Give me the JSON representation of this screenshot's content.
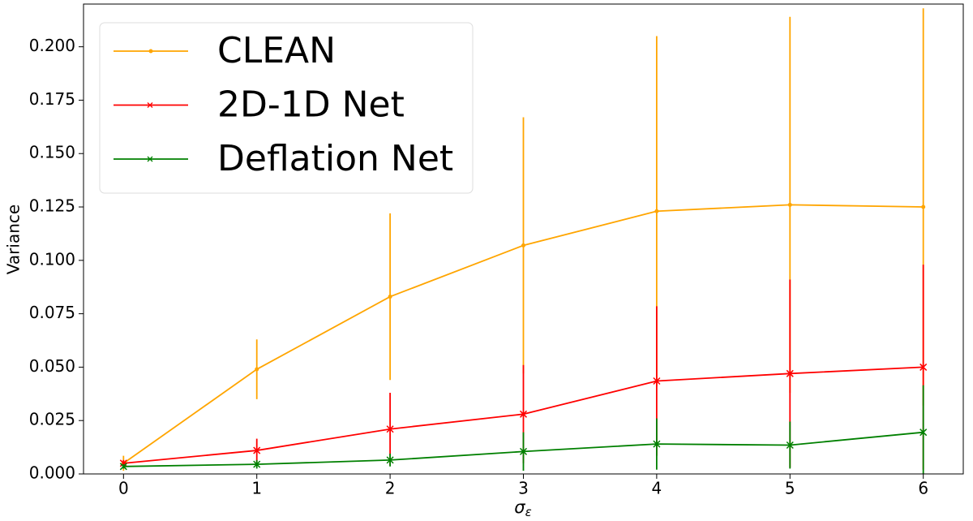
{
  "chart_data": {
    "type": "line",
    "x_label": {
      "symbol": "σ",
      "subscript": "ε"
    },
    "y_label": "Variance",
    "x": [
      0,
      1,
      2,
      3,
      4,
      5,
      6
    ],
    "xlim": [
      -0.3,
      6.3
    ],
    "xticks": [
      0,
      1,
      2,
      3,
      4,
      5,
      6
    ],
    "ylim": [
      0,
      0.22
    ],
    "yticks": [
      {
        "value": 0,
        "label": "0.000"
      },
      {
        "value": 0.025,
        "label": "0.025"
      },
      {
        "value": 0.05,
        "label": "0.050"
      },
      {
        "value": 0.075,
        "label": "0.075"
      },
      {
        "value": 0.1,
        "label": "0.100"
      },
      {
        "value": 0.125,
        "label": "0.125"
      },
      {
        "value": 0.15,
        "label": "0.150"
      },
      {
        "value": 0.175,
        "label": "0.175"
      },
      {
        "value": 0.2,
        "label": "0.200"
      }
    ],
    "grid": false,
    "legend": "upper left",
    "series": [
      {
        "name": "CLEAN",
        "color": "#ffa500",
        "marker": "dot",
        "values": [
          0.005,
          0.049,
          0.083,
          0.107,
          0.123,
          0.126,
          0.125
        ],
        "errors": [
          0.0035,
          0.014,
          0.039,
          0.06,
          0.082,
          0.088,
          0.093
        ]
      },
      {
        "name": "2D-1D Net",
        "color": "#ff0000",
        "marker": "x",
        "values": [
          0.005,
          0.011,
          0.021,
          0.028,
          0.0435,
          0.047,
          0.05
        ],
        "errors": [
          0.0015,
          0.0055,
          0.017,
          0.023,
          0.035,
          0.044,
          0.048
        ]
      },
      {
        "name": "Deflation Net",
        "color": "#008000",
        "marker": "x",
        "values": [
          0.0035,
          0.0045,
          0.0065,
          0.0105,
          0.014,
          0.0135,
          0.0195
        ],
        "errors": [
          0.001,
          0.002,
          0.003,
          0.009,
          0.012,
          0.011,
          0.022
        ]
      }
    ]
  }
}
